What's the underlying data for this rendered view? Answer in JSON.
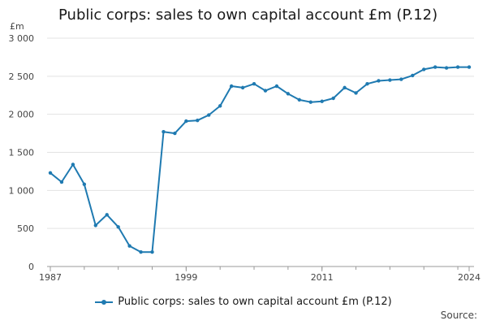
{
  "chart_data": {
    "type": "line",
    "title": "Public corps: sales to own capital account £m (P.12)",
    "ylabel": "£m",
    "xlabel": "",
    "ylim": [
      0,
      3000
    ],
    "yticks": [
      0,
      500,
      1000,
      1500,
      2000,
      2500,
      3000
    ],
    "ytick_labels": [
      "0",
      "500",
      "1 000",
      "1 500",
      "2 000",
      "2 500",
      "3 000"
    ],
    "xlim": [
      1987,
      2024
    ],
    "xtick_labels": [
      "1987",
      "1999",
      "2011",
      "2024"
    ],
    "grid": "horizontal",
    "legend_position": "bottom",
    "color": "#1f7ab1",
    "series": [
      {
        "name": "Public corps: sales to own capital account £m (P.12)",
        "x": [
          1987,
          1988,
          1989,
          1990,
          1991,
          1992,
          1993,
          1994,
          1995,
          1996,
          1997,
          1998,
          1999,
          2000,
          2001,
          2002,
          2003,
          2004,
          2005,
          2006,
          2007,
          2008,
          2009,
          2010,
          2011,
          2012,
          2013,
          2014,
          2015,
          2016,
          2017,
          2018,
          2019,
          2020,
          2021,
          2022,
          2023,
          2024
        ],
        "values": [
          1230,
          1110,
          1340,
          1080,
          540,
          680,
          520,
          270,
          190,
          190,
          1770,
          1750,
          1910,
          1920,
          1990,
          2110,
          2370,
          2350,
          2400,
          2310,
          2370,
          2270,
          2190,
          2160,
          2170,
          2210,
          2350,
          2280,
          2400,
          2440,
          2450,
          2460,
          2510,
          2590,
          2620,
          2610,
          2620,
          2620
        ]
      }
    ]
  },
  "legend": {
    "label": "Public corps: sales to own capital account £m (P.12)"
  },
  "source": {
    "label": "Source:"
  }
}
